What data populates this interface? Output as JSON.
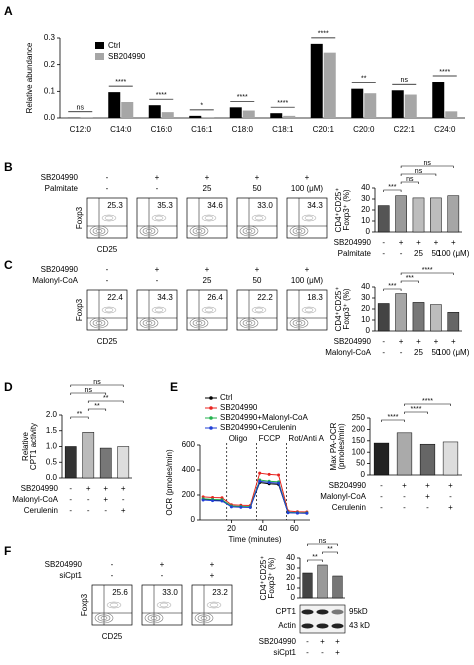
{
  "figure": {
    "letters": [
      "A",
      "B",
      "C",
      "D",
      "E",
      "F"
    ]
  },
  "chart_data": [
    {
      "type": "bar",
      "y_label": "Relative abundance",
      "categories": [
        "C12:0",
        "C14:0",
        "C16:0",
        "C16:1",
        "C18:0",
        "C18:1",
        "C20:1",
        "C20:0",
        "C22:1",
        "C24:0"
      ],
      "series": [
        {
          "name": "Ctrl",
          "color": "#000000",
          "values": [
            0.001,
            0.097,
            0.048,
            0.008,
            0.04,
            0.018,
            0.278,
            0.11,
            0.104,
            0.135
          ]
        },
        {
          "name": "SB204990",
          "color": "#a6a6a6",
          "values": [
            0.001,
            0.06,
            0.022,
            0.003,
            0.028,
            0.008,
            0.245,
            0.093,
            0.088,
            0.025
          ]
        }
      ],
      "ylim": [
        0,
        0.3
      ],
      "yticks": [
        {
          "value": 0,
          "label": "0.0"
        },
        {
          "value": 0.1,
          "label": "0.1"
        },
        {
          "value": 0.2,
          "label": "0.2"
        },
        {
          "value": 0.3,
          "label": "0.3"
        }
      ],
      "significance": [
        "ns",
        "****",
        "****",
        "*",
        "****",
        "****",
        "****",
        "**",
        "ns",
        "****"
      ]
    },
    {
      "type": "bar",
      "y_label": [
        "CD4⁺CD25⁺",
        "Foxp3⁺ (%)"
      ],
      "values": [
        24,
        33,
        31,
        31,
        33
      ],
      "colors": [
        "#555555",
        "#9a9a9a",
        "#bdbdbd",
        "#bdbdbd",
        "#a6a6a6"
      ],
      "ylim": [
        0,
        40
      ],
      "yticks": [
        0,
        10,
        20,
        30,
        40
      ],
      "conditions": [
        {
          "label": "SB204990",
          "values": [
            "-",
            "+",
            "+",
            "+",
            "+"
          ]
        },
        {
          "label": "Palmitate",
          "values": [
            "-",
            "-",
            "25",
            "50",
            "100 (μM)"
          ]
        }
      ],
      "significance": [
        "***",
        "ns",
        "ns",
        "ns"
      ]
    },
    {
      "type": "bar",
      "y_label": [
        "CD4⁺CD25⁺",
        "Foxp3⁺ (%)"
      ],
      "values": [
        25,
        34,
        26,
        24,
        17
      ],
      "colors": [
        "#444444",
        "#a6a6a6",
        "#777777",
        "#bdbdbd",
        "#666666"
      ],
      "ylim": [
        0,
        40
      ],
      "yticks": [
        0,
        10,
        20,
        30,
        40
      ],
      "conditions": [
        {
          "label": "SB204990",
          "values": [
            "-",
            "+",
            "+",
            "+",
            "+"
          ]
        },
        {
          "label": "Malonyl-CoA",
          "values": [
            "-",
            "-",
            "25",
            "50",
            "100 (μM)"
          ]
        }
      ],
      "significance": [
        "***",
        "***",
        "****"
      ]
    },
    {
      "type": "bar",
      "y_label": [
        "Relative",
        "CPT1 activity"
      ],
      "values": [
        1.0,
        1.45,
        0.95,
        1.0
      ],
      "colors": [
        "#333333",
        "#bbbbbb",
        "#777777",
        "#dddddd"
      ],
      "ylim": [
        0,
        2
      ],
      "yticks": [
        {
          "value": 0,
          "label": "0.0"
        },
        {
          "value": 0.5,
          "label": "0.5"
        },
        {
          "value": 1,
          "label": "1.0"
        },
        {
          "value": 1.5,
          "label": "1.5"
        },
        {
          "value": 2,
          "label": "2.0"
        }
      ],
      "conditions": [
        {
          "label": "SB204990",
          "values": [
            "-",
            "+",
            "+",
            "+"
          ]
        },
        {
          "label": "Malonyl-CoA",
          "values": [
            "-",
            "-",
            "+",
            "-"
          ]
        },
        {
          "label": "Cerulenin",
          "values": [
            "-",
            "-",
            "-",
            "+"
          ]
        }
      ],
      "significance": [
        "**",
        "**",
        "**",
        "ns",
        "ns"
      ]
    },
    {
      "type": "line",
      "y_label": "OCR (pmoles/min)",
      "x_label": "Time (minutes)",
      "x": [
        2,
        8,
        14,
        20,
        26,
        32,
        38,
        44,
        50,
        56,
        62,
        68
      ],
      "series": [
        {
          "name": "Ctrl",
          "color": "#000000",
          "values": [
            165,
            160,
            158,
            110,
            106,
            104,
            300,
            290,
            285,
            60,
            56,
            55
          ]
        },
        {
          "name": "SB204990",
          "color": "#e8231f",
          "values": [
            185,
            180,
            178,
            122,
            118,
            116,
            375,
            365,
            360,
            72,
            66,
            64
          ]
        },
        {
          "name": "SB204990+Malonyl-CoA",
          "color": "#22b14c",
          "values": [
            170,
            165,
            162,
            112,
            108,
            106,
            320,
            310,
            305,
            62,
            58,
            57
          ]
        },
        {
          "name": "SB204990+Cerulenin",
          "color": "#1f3fd6",
          "values": [
            160,
            155,
            152,
            105,
            102,
            100,
            310,
            300,
            295,
            58,
            55,
            54
          ]
        }
      ],
      "xlim": [
        0,
        70
      ],
      "xticks": [
        20,
        40,
        60
      ],
      "ylim": [
        0,
        600
      ],
      "yticks": [
        0,
        200,
        400,
        600
      ],
      "annotations": [
        {
          "text": "Oligo",
          "x": 17
        },
        {
          "text": "FCCP",
          "x": 36
        },
        {
          "text": "Rot/Anti A",
          "x": 55
        }
      ]
    },
    {
      "type": "bar",
      "y_label": [
        "Max PA-OCR",
        "(pmoles/min)"
      ],
      "values": [
        140,
        185,
        135,
        145
      ],
      "colors": [
        "#222222",
        "#aaaaaa",
        "#666666",
        "#dddddd"
      ],
      "ylim": [
        0,
        250
      ],
      "yticks": [
        0,
        50,
        100,
        150,
        200,
        250
      ],
      "conditions": [
        {
          "label": "SB204990",
          "values": [
            "-",
            "+",
            "+",
            "+"
          ]
        },
        {
          "label": "Malonyl-CoA",
          "values": [
            "-",
            "-",
            "+",
            "-"
          ]
        },
        {
          "label": "Cerulenin",
          "values": [
            "-",
            "-",
            "-",
            "+"
          ]
        }
      ],
      "significance": [
        "****",
        "****",
        "****"
      ]
    },
    {
      "type": "bar",
      "y_label": [
        "CD4⁺CD25⁺",
        "Foxp3⁺ (%)"
      ],
      "values": [
        25,
        33,
        22
      ],
      "colors": [
        "#444444",
        "#999999",
        "#777777"
      ],
      "ylim": [
        0,
        40
      ],
      "yticks": [
        0,
        10,
        20,
        30,
        40
      ],
      "significance": [
        "**",
        "**",
        "ns"
      ]
    }
  ],
  "flow_panels": [
    {
      "conditions": [
        {
          "label": "SB204990",
          "values": [
            "-",
            "+",
            "+",
            "+",
            "+"
          ]
        },
        {
          "label": "Palmitate",
          "values": [
            "-",
            "-",
            "25",
            "50",
            "100 (μM)"
          ]
        }
      ],
      "percentages": [
        "25.3",
        "35.3",
        "34.6",
        "33.0",
        "34.3"
      ],
      "x_label": "CD25",
      "y_label": "Foxp3"
    },
    {
      "conditions": [
        {
          "label": "SB204990",
          "values": [
            "-",
            "+",
            "+",
            "+",
            "+"
          ]
        },
        {
          "label": "Malonyl-CoA",
          "values": [
            "-",
            "-",
            "25",
            "50",
            "100 (μM)"
          ]
        }
      ],
      "percentages": [
        "22.4",
        "34.3",
        "26.4",
        "22.2",
        "18.3"
      ],
      "x_label": "CD25",
      "y_label": "Foxp3"
    },
    {
      "conditions": [
        {
          "label": "SB204990",
          "values": [
            "-",
            "+",
            "+"
          ]
        },
        {
          "label": "siCpt1",
          "values": [
            "-",
            "-",
            "+"
          ]
        }
      ],
      "percentages": [
        "25.6",
        "33.0",
        "23.2"
      ],
      "x_label": "CD25",
      "y_label": "Foxp3"
    }
  ],
  "blot": {
    "bands": [
      "CPT1",
      "Actin"
    ],
    "sizes": [
      "95kD",
      "43 kD"
    ],
    "conditions": [
      {
        "label": "SB204990",
        "values": [
          "-",
          "+",
          "+"
        ]
      },
      {
        "label": "siCpt1",
        "values": [
          "-",
          "-",
          "+"
        ]
      }
    ]
  }
}
